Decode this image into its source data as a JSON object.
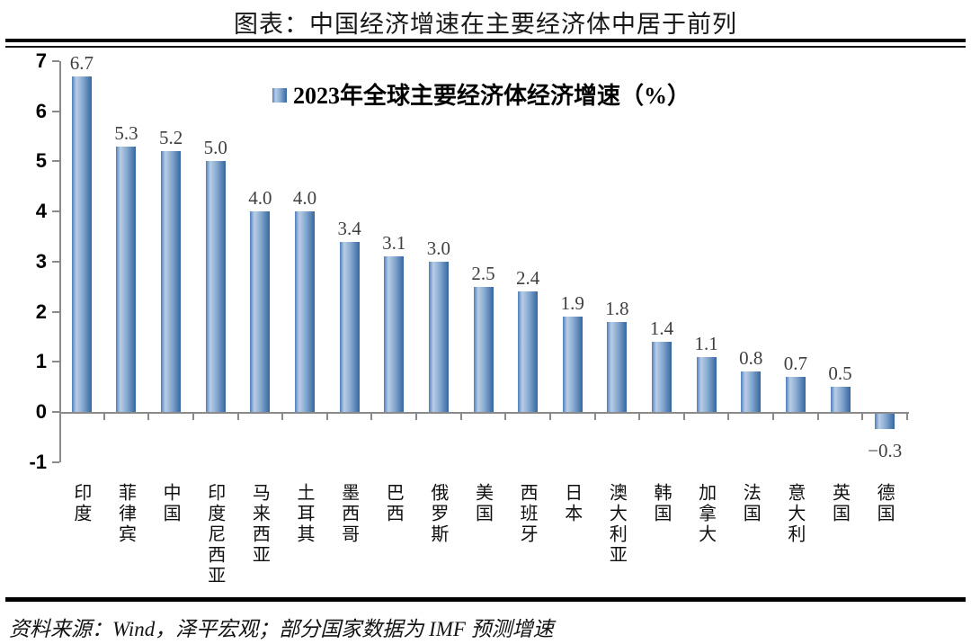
{
  "title": "图表：中国经济增速在主要经济体中居于前列",
  "footer": "资料来源：Wind，泽平宏观；部分国家数据为 IMF 预测增速",
  "chart_data": {
    "type": "bar",
    "legend": "2023年全球主要经济体经济增速（%）",
    "legend_position": "top-center",
    "categories": [
      "印度",
      "菲律宾",
      "中国",
      "印度尼西亚",
      "马来西亚",
      "土耳其",
      "墨西哥",
      "巴西",
      "俄罗斯",
      "美国",
      "西班牙",
      "日本",
      "澳大利亚",
      "韩国",
      "加拿大",
      "法国",
      "意大利",
      "英国",
      "德国"
    ],
    "values": [
      6.7,
      5.3,
      5.2,
      5.0,
      4.0,
      4.0,
      3.4,
      3.1,
      3.0,
      2.5,
      2.4,
      1.9,
      1.8,
      1.4,
      1.1,
      0.8,
      0.7,
      0.5,
      -0.3
    ],
    "data_labels": [
      "6.7",
      "5.3",
      "5.2",
      "5.0",
      "4.0",
      "4.0",
      "3.4",
      "3.1",
      "3.0",
      "2.5",
      "2.4",
      "1.9",
      "1.8",
      "1.4",
      "1.1",
      "0.8",
      "0.7",
      "0.5",
      "−0.3"
    ],
    "ylim": [
      -1,
      7
    ],
    "yticks": [
      7,
      6,
      5,
      4,
      3,
      2,
      1,
      0,
      -1
    ],
    "grid": false,
    "bar_gradient": [
      "#4d7ebc",
      "#b9cde4",
      "#86a9d0",
      "#35669f"
    ],
    "axis_color": "#8a8a8a",
    "label_color": "#3f3f3f"
  }
}
